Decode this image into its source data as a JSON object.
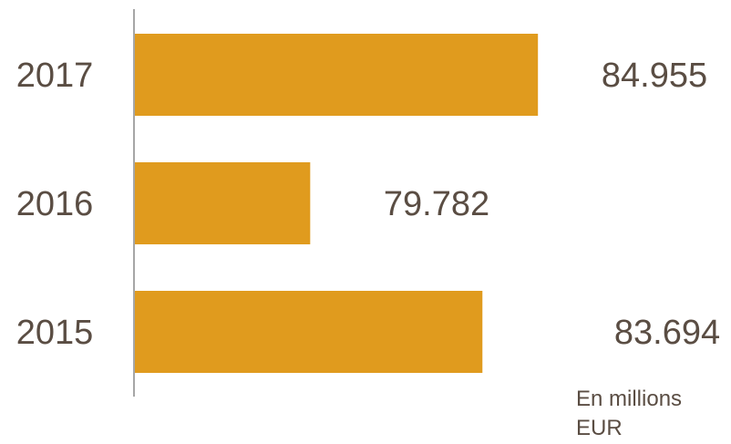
{
  "chart_data": {
    "type": "bar",
    "orientation": "horizontal",
    "categories": [
      "2017",
      "2016",
      "2015"
    ],
    "values": [
      84.955,
      79.782,
      83.694
    ],
    "value_labels": [
      "84.955",
      "79.782",
      "83.694"
    ],
    "unit_note": "En millions EUR",
    "xlim": [
      75.8,
      87.1
    ],
    "colors": {
      "bar": "#e09b1e",
      "text": "#5a4d43",
      "axis": "#888888"
    }
  }
}
